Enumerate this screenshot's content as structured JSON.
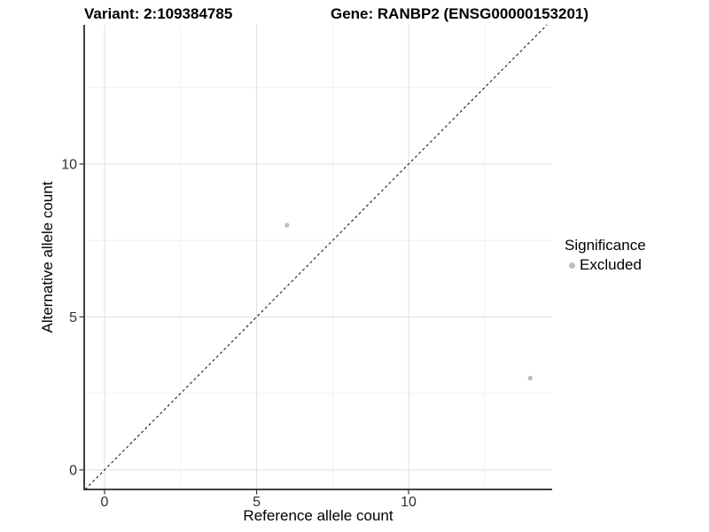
{
  "header": {
    "title_left": "Variant: 2:109384785",
    "title_right": "Gene: RANBP2 (ENSG00000153201)"
  },
  "chart_data": {
    "type": "scatter",
    "xlabel": "Reference allele count",
    "ylabel": "Alternative allele count",
    "xlim": [
      -0.67,
      14.72
    ],
    "ylim": [
      -0.64,
      14.55
    ],
    "x_ticks": [
      0,
      5,
      10
    ],
    "y_ticks": [
      0,
      5,
      10
    ],
    "x_minor_ticks": [
      2.5,
      7.5,
      12.5
    ],
    "y_minor_ticks": [
      2.5,
      7.5,
      12.5
    ],
    "grid": true,
    "legend_position": "right",
    "series": [
      {
        "name": "Excluded",
        "points": [
          {
            "x": 6,
            "y": 8
          },
          {
            "x": 14,
            "y": 3
          }
        ],
        "color": "#bebebe"
      }
    ],
    "reference_line": {
      "type": "identity",
      "slope": 1,
      "intercept": 0,
      "style": "dashed",
      "color": "#1a1a1a"
    }
  },
  "legend": {
    "title": "Significance",
    "items": [
      {
        "label": "Excluded",
        "color": "#bebebe"
      }
    ]
  },
  "colors": {
    "background": "#ffffff",
    "grid_major": "#e3e3e3",
    "grid_minor": "#efefef",
    "axis_line": "#404040",
    "tick_mark": "#333333",
    "tick_label": "#303030",
    "point": "#bebebe"
  }
}
